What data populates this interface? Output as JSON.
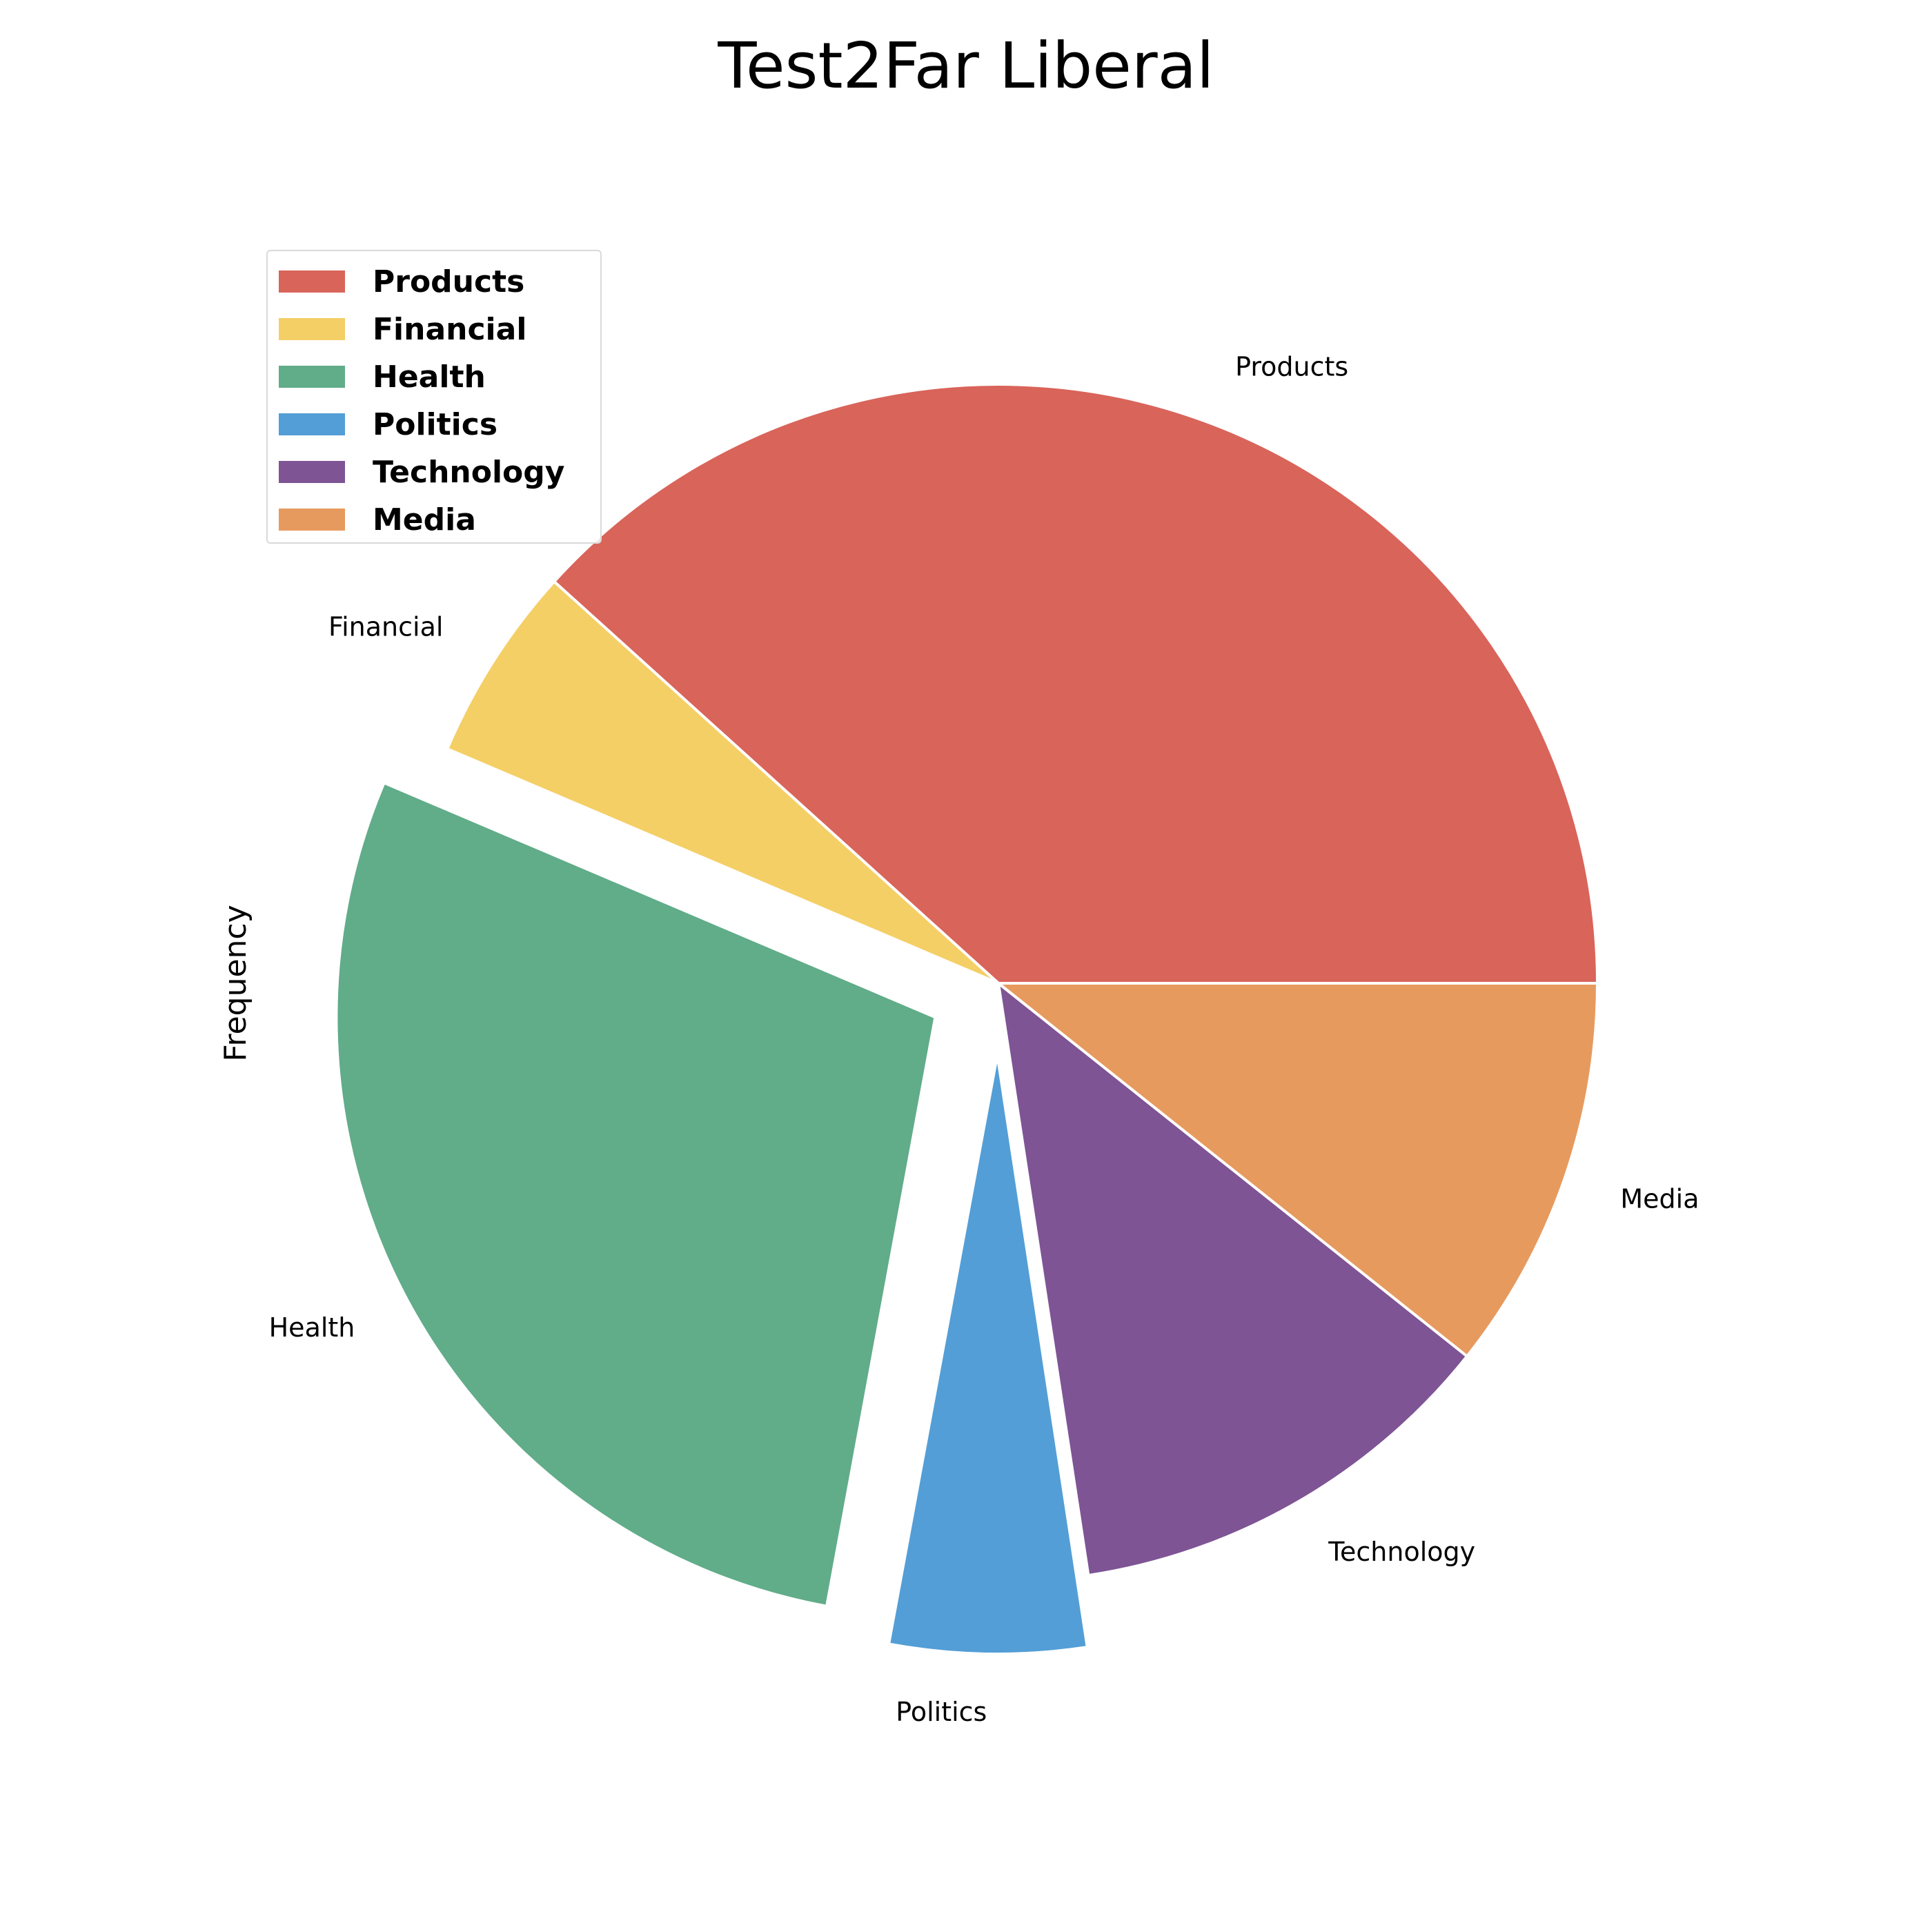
{
  "chart_data": {
    "type": "pie",
    "title": "Test2Far Liberal",
    "ylabel": "Frequency",
    "categories": [
      "Products",
      "Financial",
      "Health",
      "Politics",
      "Technology",
      "Media"
    ],
    "values": [
      38.3,
      5.3,
      28.5,
      5.3,
      11.9,
      10.7
    ],
    "explode": [
      0,
      0,
      1,
      1,
      0,
      0
    ],
    "colors": [
      "#d9645a",
      "#f4cf66",
      "#61ac89",
      "#539ed6",
      "#7e5495",
      "#e79a5e"
    ],
    "legend_position": "upper-left"
  }
}
